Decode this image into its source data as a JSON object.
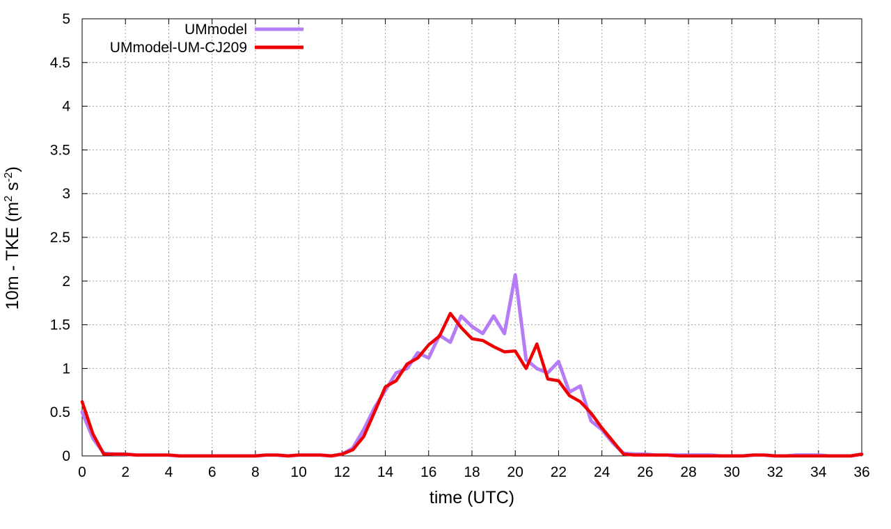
{
  "chart_data": {
    "type": "line",
    "xlabel": "time (UTC)",
    "ylabel_main": "10m - TKE (m",
    "ylabel_sup1": "2",
    "ylabel_mid": " s",
    "ylabel_sup2": "-2",
    "ylabel_end": ")",
    "xlim": [
      0,
      36
    ],
    "ylim": [
      0,
      5
    ],
    "xticks": [
      0,
      2,
      4,
      6,
      8,
      10,
      12,
      14,
      16,
      18,
      20,
      22,
      24,
      26,
      28,
      30,
      32,
      34,
      36
    ],
    "yticks": [
      0,
      0.5,
      1,
      1.5,
      2,
      2.5,
      3,
      3.5,
      4,
      4.5,
      5
    ],
    "ytick_labels": [
      "0",
      "0.5",
      "1",
      "1.5",
      "2",
      "2.5",
      "3",
      "3.5",
      "4",
      "4.5",
      "5"
    ],
    "grid": true,
    "legend_position": "top-left",
    "series": [
      {
        "name": "UMmodel",
        "color": "#b57cf5",
        "x": [
          0,
          0.5,
          1,
          1.5,
          2,
          2.5,
          3,
          3.5,
          4,
          4.5,
          5,
          5.5,
          6,
          6.5,
          7,
          7.5,
          8,
          8.5,
          9,
          9.5,
          10,
          10.5,
          11,
          11.5,
          12,
          12.5,
          13,
          13.5,
          14,
          14.5,
          15,
          15.5,
          16,
          16.5,
          17,
          17.5,
          18,
          18.5,
          19,
          19.5,
          20,
          20.5,
          21,
          21.5,
          22,
          22.5,
          23,
          23.5,
          24,
          24.5,
          25,
          25.5,
          26,
          26.5,
          27,
          27.5,
          28,
          28.5,
          29,
          29.5,
          30,
          30.5,
          31,
          31.5,
          32,
          32.5,
          33,
          33.5,
          34,
          34.5,
          35,
          35.5,
          36
        ],
        "y": [
          0.5,
          0.2,
          0.03,
          0.02,
          0.02,
          0.01,
          0.01,
          0.01,
          0.01,
          0.0,
          0.0,
          0.0,
          0.0,
          0.0,
          0.0,
          0.0,
          0.0,
          0.01,
          0.01,
          0.0,
          0.01,
          0.01,
          0.01,
          0.0,
          0.02,
          0.09,
          0.3,
          0.55,
          0.75,
          0.95,
          1.0,
          1.18,
          1.12,
          1.38,
          1.3,
          1.6,
          1.48,
          1.4,
          1.6,
          1.4,
          2.07,
          1.1,
          1.0,
          0.95,
          1.08,
          0.73,
          0.8,
          0.4,
          0.3,
          0.15,
          0.03,
          0.02,
          0.02,
          0.01,
          0.01,
          0.01,
          0.01,
          0.01,
          0.01,
          0.0,
          0.0,
          0.0,
          0.01,
          0.01,
          0.0,
          0.0,
          0.01,
          0.01,
          0.01,
          0.0,
          0.0,
          0.0,
          0.02
        ]
      },
      {
        "name": "UMmodel-UM-CJ209",
        "color": "#ee0000",
        "x": [
          0,
          0.5,
          1,
          1.5,
          2,
          2.5,
          3,
          3.5,
          4,
          4.5,
          5,
          5.5,
          6,
          6.5,
          7,
          7.5,
          8,
          8.5,
          9,
          9.5,
          10,
          10.5,
          11,
          11.5,
          12,
          12.5,
          13,
          13.5,
          14,
          14.5,
          15,
          15.5,
          16,
          16.5,
          17,
          17.5,
          18,
          18.5,
          19,
          19.5,
          20,
          20.5,
          21,
          21.5,
          22,
          22.5,
          23,
          23.5,
          24,
          24.5,
          25,
          25.5,
          26,
          26.5,
          27,
          27.5,
          28,
          28.5,
          29,
          29.5,
          30,
          30.5,
          31,
          31.5,
          32,
          32.5,
          33,
          33.5,
          34,
          34.5,
          35,
          35.5,
          36
        ],
        "y": [
          0.62,
          0.25,
          0.02,
          0.02,
          0.02,
          0.01,
          0.01,
          0.01,
          0.01,
          0.0,
          0.0,
          0.0,
          0.0,
          0.0,
          0.0,
          0.0,
          0.0,
          0.01,
          0.01,
          0.0,
          0.01,
          0.01,
          0.01,
          0.0,
          0.02,
          0.07,
          0.22,
          0.5,
          0.79,
          0.86,
          1.05,
          1.12,
          1.27,
          1.37,
          1.63,
          1.47,
          1.34,
          1.32,
          1.25,
          1.19,
          1.2,
          1.0,
          1.28,
          0.88,
          0.86,
          0.69,
          0.62,
          0.49,
          0.32,
          0.17,
          0.02,
          0.01,
          0.01,
          0.01,
          0.01,
          0.0,
          0.0,
          0.0,
          0.0,
          0.0,
          0.0,
          0.0,
          0.01,
          0.01,
          0.0,
          0.0,
          0.0,
          0.0,
          0.0,
          0.0,
          0.0,
          0.0,
          0.02
        ]
      }
    ]
  }
}
